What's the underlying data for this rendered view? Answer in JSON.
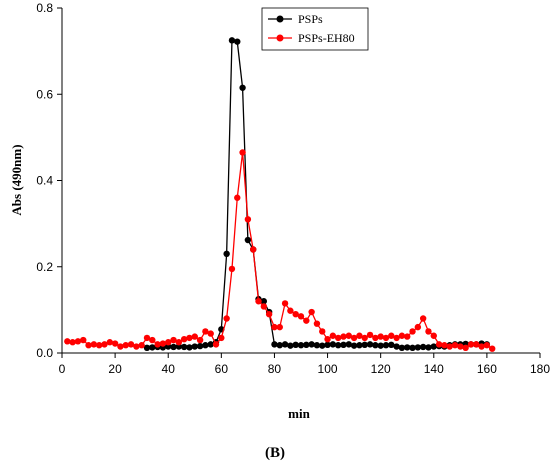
{
  "chart_data": {
    "type": "line",
    "title": "",
    "xlabel": "min",
    "ylabel": "Abs (490nm)",
    "xlim": [
      0,
      180
    ],
    "ylim": [
      0,
      0.8
    ],
    "xticks": [
      0,
      20,
      40,
      60,
      80,
      100,
      120,
      140,
      160,
      180
    ],
    "yticks": [
      0.0,
      0.2,
      0.4,
      0.6,
      0.8
    ],
    "xtick_labels": [
      "0",
      "20",
      "40",
      "60",
      "80",
      "100",
      "120",
      "140",
      "160",
      "180"
    ],
    "ytick_labels": [
      "0.0",
      "0.2",
      "0.4",
      "0.6",
      "0.8"
    ],
    "grid": false,
    "legend_position": "top-right",
    "caption": "(B)",
    "series": [
      {
        "name": "PSPs",
        "color": "#000000",
        "marker": "circle",
        "x": [
          32,
          34,
          36,
          38,
          40,
          42,
          44,
          46,
          48,
          50,
          52,
          54,
          56,
          58,
          60,
          62,
          64,
          66,
          68,
          70,
          72,
          74,
          76,
          78,
          80,
          82,
          84,
          86,
          88,
          90,
          92,
          94,
          96,
          98,
          100,
          102,
          104,
          106,
          108,
          110,
          112,
          114,
          116,
          118,
          120,
          122,
          124,
          126,
          128,
          130,
          132,
          134,
          136,
          138,
          140,
          142,
          144,
          146,
          148,
          150,
          152,
          154,
          156,
          158,
          160
        ],
        "y": [
          0.012,
          0.013,
          0.014,
          0.013,
          0.015,
          0.014,
          0.015,
          0.014,
          0.013,
          0.015,
          0.016,
          0.018,
          0.02,
          0.025,
          0.055,
          0.23,
          0.725,
          0.722,
          0.615,
          0.262,
          0.24,
          0.125,
          0.12,
          0.095,
          0.02,
          0.018,
          0.02,
          0.017,
          0.019,
          0.018,
          0.019,
          0.02,
          0.018,
          0.017,
          0.019,
          0.02,
          0.018,
          0.019,
          0.02,
          0.017,
          0.018,
          0.019,
          0.02,
          0.018,
          0.017,
          0.018,
          0.019,
          0.015,
          0.012,
          0.013,
          0.012,
          0.013,
          0.014,
          0.013,
          0.015,
          0.016,
          0.015,
          0.018,
          0.02,
          0.02,
          0.021,
          0.02,
          0.02,
          0.022,
          0.02
        ]
      },
      {
        "name": "PSPs-EH80",
        "color": "#ff0000",
        "marker": "circle",
        "x": [
          2,
          4,
          6,
          8,
          10,
          12,
          14,
          16,
          18,
          20,
          22,
          24,
          26,
          28,
          30,
          32,
          34,
          36,
          38,
          40,
          42,
          44,
          46,
          48,
          50,
          52,
          54,
          56,
          58,
          60,
          62,
          64,
          66,
          68,
          70,
          72,
          74,
          76,
          78,
          80,
          82,
          84,
          86,
          88,
          90,
          92,
          94,
          96,
          98,
          100,
          102,
          104,
          106,
          108,
          110,
          112,
          114,
          116,
          118,
          120,
          122,
          124,
          126,
          128,
          130,
          132,
          134,
          136,
          138,
          140,
          142,
          144,
          146,
          148,
          150,
          152,
          154,
          156,
          158,
          160,
          162
        ],
        "y": [
          0.027,
          0.025,
          0.027,
          0.03,
          0.018,
          0.02,
          0.018,
          0.02,
          0.025,
          0.022,
          0.015,
          0.018,
          0.02,
          0.015,
          0.018,
          0.035,
          0.03,
          0.02,
          0.022,
          0.025,
          0.03,
          0.025,
          0.032,
          0.035,
          0.038,
          0.03,
          0.05,
          0.045,
          0.02,
          0.035,
          0.08,
          0.195,
          0.36,
          0.465,
          0.31,
          0.24,
          0.12,
          0.108,
          0.09,
          0.06,
          0.06,
          0.115,
          0.098,
          0.09,
          0.085,
          0.075,
          0.095,
          0.068,
          0.05,
          0.032,
          0.04,
          0.035,
          0.038,
          0.04,
          0.035,
          0.04,
          0.035,
          0.042,
          0.035,
          0.038,
          0.035,
          0.04,
          0.035,
          0.04,
          0.038,
          0.05,
          0.06,
          0.08,
          0.05,
          0.04,
          0.02,
          0.018,
          0.015,
          0.018,
          0.015,
          0.012,
          0.02,
          0.02,
          0.015,
          0.018,
          0.01
        ]
      }
    ]
  }
}
